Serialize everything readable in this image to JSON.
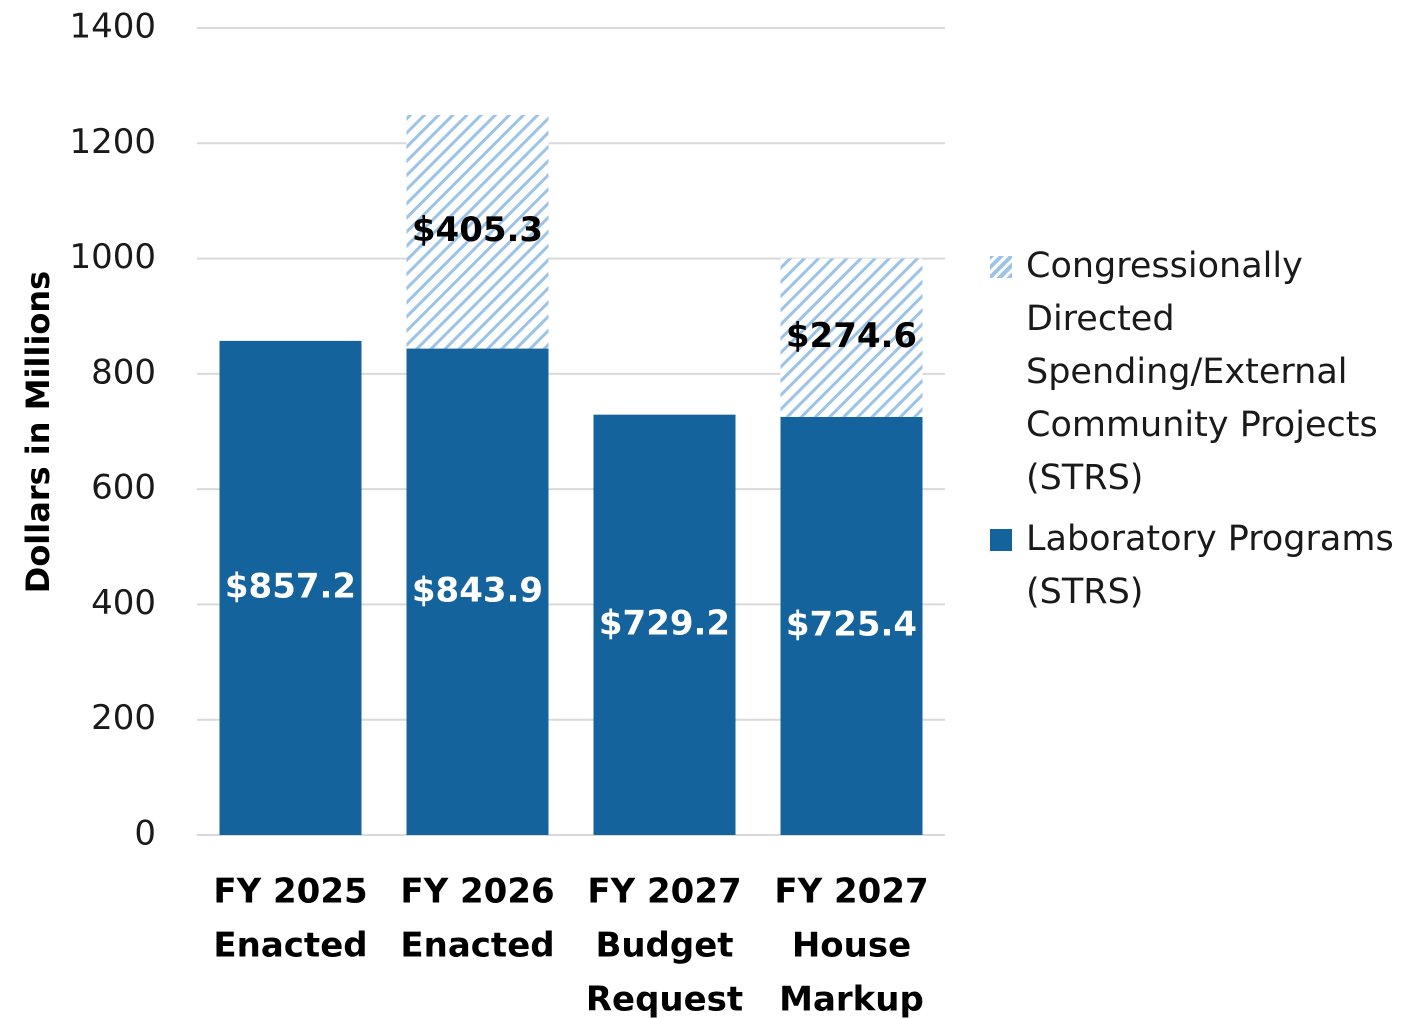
{
  "chart_data": {
    "type": "stacked_bar",
    "categories": [
      [
        "FY 2025",
        "Enacted"
      ],
      [
        "FY 2026",
        "Enacted"
      ],
      [
        "FY 2027",
        "Budget",
        "Request"
      ],
      [
        "FY 2027",
        "House",
        "Markup"
      ]
    ],
    "y_label": "Dollars in Millions",
    "series": [
      {
        "name": "Laboratory Programs (STRS)",
        "color": "#14639c",
        "pattern": "solid",
        "label_color": "#ffffff",
        "values": [
          857.2,
          843.9,
          729.2,
          725.4
        ],
        "value_labels": [
          "$857.2",
          "$843.9",
          "$729.2",
          "$725.4"
        ]
      },
      {
        "name": "Congressionally Directed Spending/External Community Projects (STRS)",
        "color": "#9dc3e6",
        "pattern": "hatch",
        "label_color": "#000000",
        "values": [
          null,
          405.3,
          null,
          274.6
        ],
        "value_labels": [
          null,
          "$405.3",
          null,
          "$274.6"
        ]
      }
    ],
    "ylim": [
      0,
      1400
    ],
    "yticks": [
      0,
      200,
      400,
      600,
      800,
      1000,
      1200,
      1400
    ],
    "grid": true,
    "legend": "right"
  }
}
